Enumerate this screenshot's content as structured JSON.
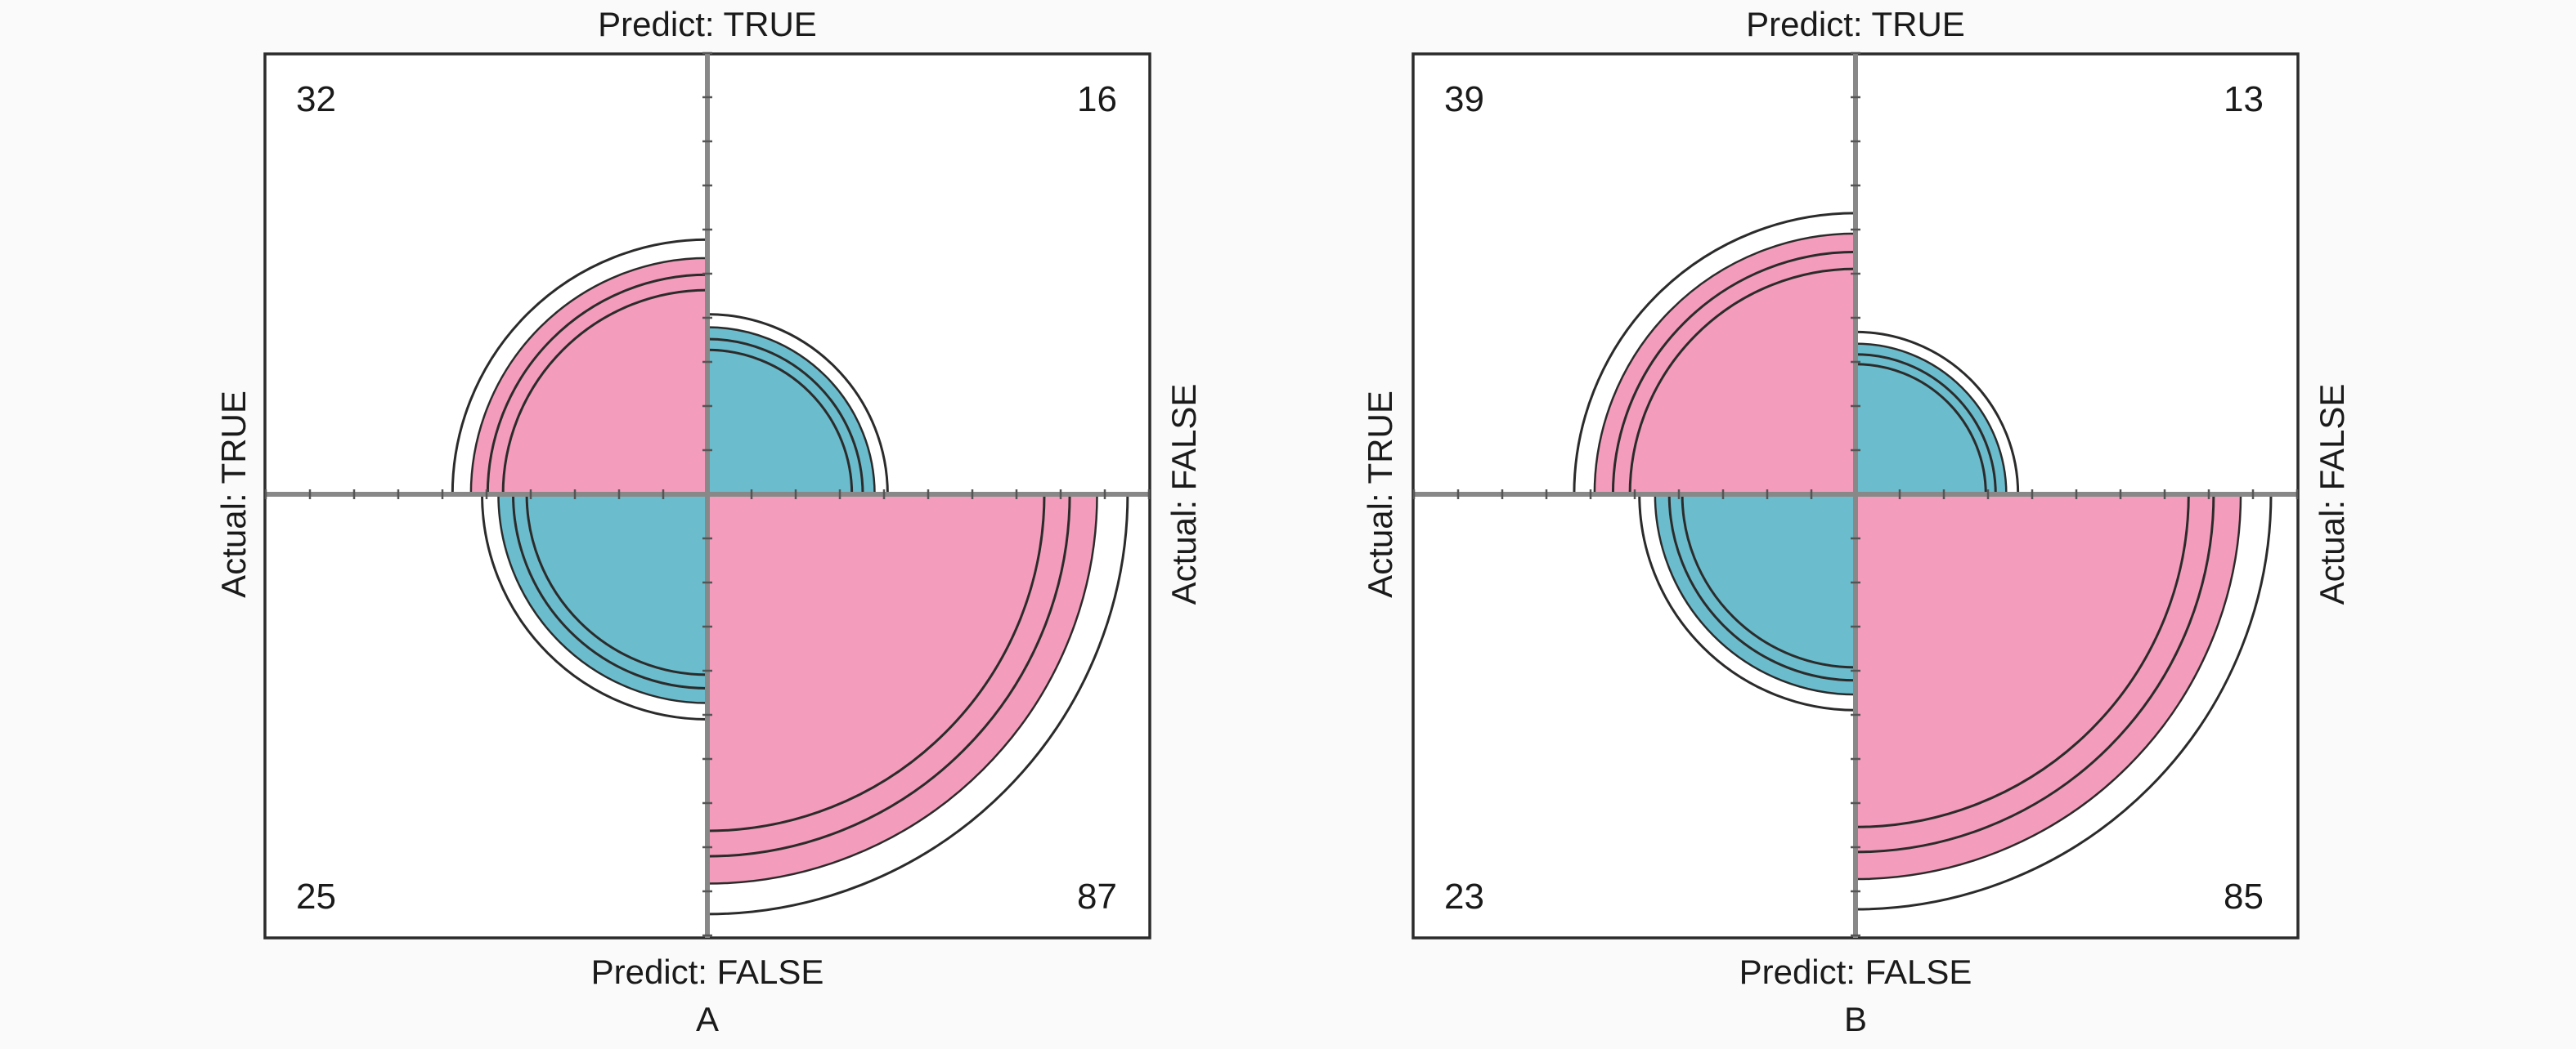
{
  "chart_data": [
    {
      "type": "fourfold",
      "panel_label": "A",
      "top_label": "Predict: TRUE",
      "bottom_label": "Predict: FALSE",
      "left_label": "Actual: TRUE",
      "right_label": "Actual: FALSE",
      "cells": [
        {
          "quadrant": "top-left",
          "actual": "TRUE",
          "predict": "TRUE",
          "count": 32,
          "count_label": "32",
          "color": "#f49cbb"
        },
        {
          "quadrant": "top-right",
          "actual": "FALSE",
          "predict": "TRUE",
          "count": 16,
          "count_label": "16",
          "color": "#6bbccc"
        },
        {
          "quadrant": "bottom-left",
          "actual": "TRUE",
          "predict": "FALSE",
          "count": 25,
          "count_label": "25",
          "color": "#6bbccc"
        },
        {
          "quadrant": "bottom-right",
          "actual": "FALSE",
          "predict": "FALSE",
          "count": 87,
          "count_label": "87",
          "color": "#f49cbb"
        }
      ]
    },
    {
      "type": "fourfold",
      "panel_label": "B",
      "top_label": "Predict: TRUE",
      "bottom_label": "Predict: FALSE",
      "left_label": "Actual: TRUE",
      "right_label": "Actual: FALSE",
      "cells": [
        {
          "quadrant": "top-left",
          "actual": "TRUE",
          "predict": "TRUE",
          "count": 39,
          "count_label": "39",
          "color": "#f49cbb"
        },
        {
          "quadrant": "top-right",
          "actual": "FALSE",
          "predict": "TRUE",
          "count": 13,
          "count_label": "13",
          "color": "#6bbccc"
        },
        {
          "quadrant": "bottom-left",
          "actual": "TRUE",
          "predict": "FALSE",
          "count": 23,
          "count_label": "23",
          "color": "#6bbccc"
        },
        {
          "quadrant": "bottom-right",
          "actual": "FALSE",
          "predict": "FALSE",
          "count": 85,
          "count_label": "85",
          "color": "#f49cbb"
        }
      ]
    }
  ]
}
